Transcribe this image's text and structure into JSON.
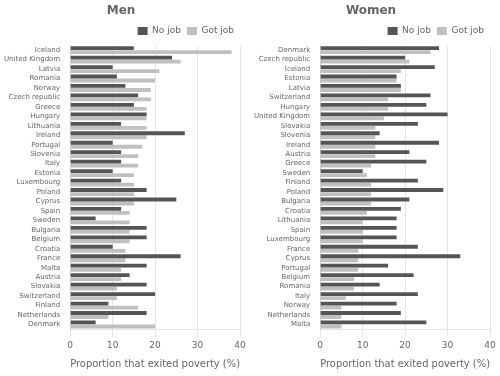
{
  "chart_data": [
    {
      "type": "bar",
      "orientation": "horizontal",
      "title": "Men",
      "xlabel": "Proportion that exited poverty (%)",
      "categories": [
        "Iceland",
        "United Kingdom",
        "Latvia",
        "Romania",
        "Norway",
        "Czech republic",
        "Greece",
        "Hungary",
        "Lithuania",
        "Ireland",
        "Portugal",
        "Slovenia",
        "Italy",
        "Estonia",
        "Luxembourg",
        "Poland",
        "Cyprus",
        "Spain",
        "Sweden",
        "Bulgaria",
        "Belgium",
        "Croatia",
        "France",
        "Malta",
        "Austria",
        "Slovakia",
        "Switzerland",
        "Finland",
        "Netherlands",
        "Denmark"
      ],
      "series": [
        {
          "name": "No job",
          "color": "#555555",
          "values": [
            15,
            24,
            10,
            11,
            13,
            16,
            15,
            18,
            12,
            27,
            10,
            12,
            12,
            10,
            12,
            18,
            25,
            12,
            6,
            18,
            18,
            10,
            26,
            18,
            14,
            18,
            20,
            9,
            18,
            6
          ]
        },
        {
          "name": "Got job",
          "color": "#c0c0c0",
          "values": [
            38,
            26,
            21,
            20,
            19,
            19,
            18,
            18,
            18,
            18,
            17,
            16,
            16,
            15,
            15,
            15,
            15,
            14,
            14,
            14,
            14,
            13,
            13,
            12,
            12,
            11,
            11,
            16,
            9,
            20
          ]
        }
      ],
      "xlim": [
        0,
        40
      ],
      "xticks": [
        0,
        10,
        20,
        30,
        40
      ],
      "grid": true,
      "legend": "upper right"
    },
    {
      "type": "bar",
      "orientation": "horizontal",
      "title": "Women",
      "xlabel": "Proportion that exited poverty (%)",
      "categories": [
        "Denmark",
        "Czech republic",
        "Iceland",
        "Estonia",
        "Latvia",
        "Switzerland",
        "Hungary",
        "United Kingdom",
        "Slovakia",
        "Slovenia",
        "Ireland",
        "Austria",
        "Greece",
        "Sweden",
        "Finland",
        "Poland",
        "Bulgaria",
        "Croatia",
        "Lithuania",
        "Spain",
        "Luxembourg",
        "France",
        "Cyprus",
        "Portugal",
        "Belgium",
        "Romania",
        "Italy",
        "Norway",
        "Netherlands",
        "Malta"
      ],
      "series": [
        {
          "name": "No job",
          "color": "#555555",
          "values": [
            28,
            20,
            27,
            18,
            19,
            26,
            25,
            30,
            23,
            14,
            28,
            21,
            25,
            10,
            23,
            29,
            21,
            19,
            18,
            18,
            18,
            23,
            33,
            16,
            22,
            14,
            23,
            18,
            19,
            25
          ]
        },
        {
          "name": "Got job",
          "color": "#c0c0c0",
          "values": [
            26,
            21,
            19,
            18,
            19,
            16,
            16,
            15,
            13,
            13,
            13,
            13,
            12,
            11,
            12,
            12,
            12,
            11,
            10,
            10,
            10,
            9,
            9,
            9,
            8,
            8,
            6,
            5,
            5,
            5
          ]
        }
      ],
      "xlim": [
        0,
        40
      ],
      "xticks": [
        0,
        10,
        20,
        30,
        40
      ],
      "grid": true,
      "legend": "upper right"
    }
  ]
}
